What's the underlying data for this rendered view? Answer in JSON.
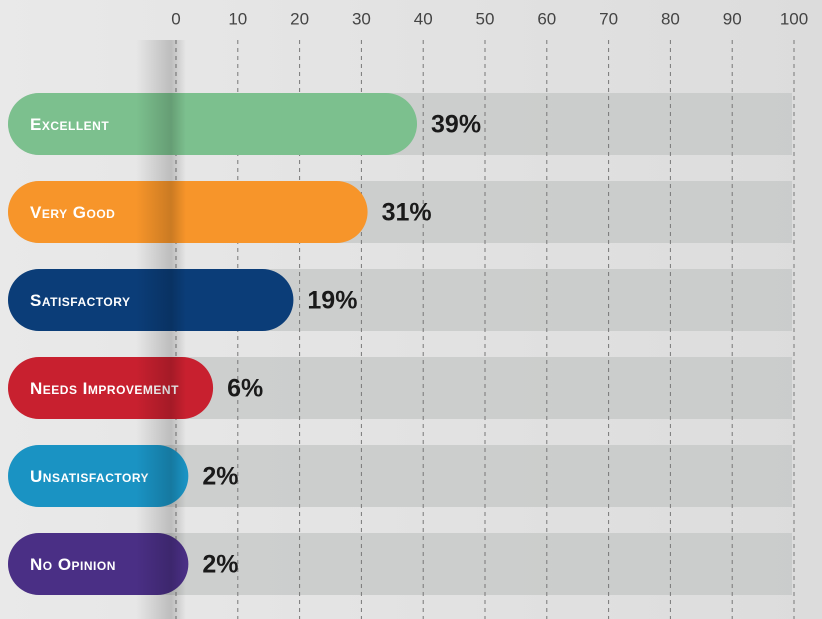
{
  "chart_data": {
    "type": "bar",
    "categories": [
      "Excellent",
      "Very Good",
      "Satisfactory",
      "Needs Improvement",
      "Unsatisfactory",
      "No Opinion"
    ],
    "values": [
      39,
      31,
      19,
      6,
      2,
      2
    ],
    "value_labels": [
      "39%",
      "31%",
      "19%",
      "6%",
      "2%",
      "2%"
    ],
    "colors": [
      "#7cc08e",
      "#f7952a",
      "#0b3d78",
      "#c8202f",
      "#1a93c3",
      "#4a2f85"
    ],
    "xlim": [
      0,
      100
    ],
    "xticks": [
      0,
      10,
      20,
      30,
      40,
      50,
      60,
      70,
      80,
      90,
      100
    ],
    "grid": true
  }
}
